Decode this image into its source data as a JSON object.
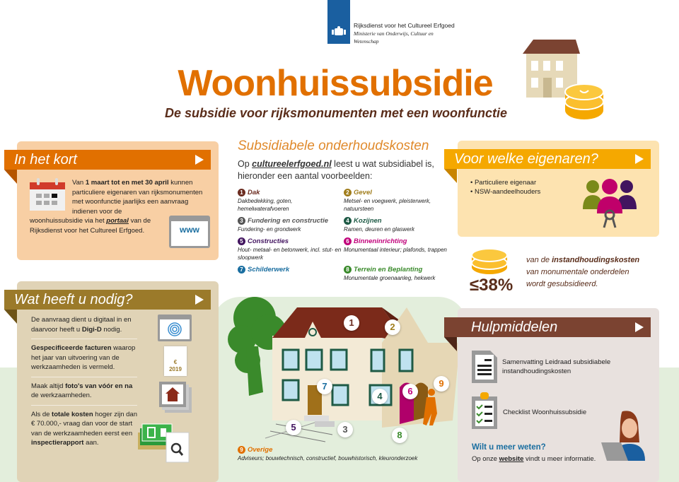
{
  "header": {
    "org_name": "Rijksdienst voor het Cultureel Erfgoed",
    "ministry": "Ministerie van Onderwijs, Cultuur en Wetenschap",
    "title": "Woonhuissubsidie",
    "subtitle": "De subsidie voor rijksmonumenten met een woonfunctie"
  },
  "kort": {
    "heading": "In het kort",
    "text_pre": "Van ",
    "text_bold": "1 maart tot en met 30 april",
    "text_mid": " kunnen particuliere eigenaren van rijksmonumenten met woonfunctie jaarlijks een aanvraag indienen voor de woonhuissubsidie via het ",
    "link": "portaal",
    "text_post": " van de Rijksdienst voor het Cultureel Erfgoed.",
    "www_label": "www"
  },
  "nodig": {
    "heading": "Wat heeft u nodig?",
    "items": [
      {
        "pre": "De aanvraag dient u digitaal in en daarvoor heeft u ",
        "bold": "Digi-D",
        "post": " nodig."
      },
      {
        "pre": "",
        "bold": "Gespecificeerde facturen",
        "post": " waarop het jaar van uitvoering van de werkzaamheden is vermeld."
      },
      {
        "pre": "Maak altijd ",
        "bold": "foto's van vóór en na",
        "post": " de werkzaamheden."
      },
      {
        "pre": "Als de ",
        "bold": "totale kosten",
        "post": " hoger zijn dan € 70.000,- vraag dan voor de start van de werkzaamheden eerst een ",
        "bold2": "inspectierapport",
        "post2": " aan."
      }
    ],
    "invoice_year": "2019",
    "euro_sign": "€"
  },
  "kosten": {
    "heading": "Subsidiabele onderhoudskosten",
    "intro_pre": "Op ",
    "intro_link": "cultureelerfgoed.nl",
    "intro_post": " leest u wat subsidiabel is, hieronder een aantal voorbeelden:",
    "items": [
      {
        "n": "1",
        "title": "Dak",
        "desc": "Dakbedekking, goten, hemelwaterafvoeren",
        "color": "#6b2b1f"
      },
      {
        "n": "2",
        "title": "Gevel",
        "desc": "Metsel- en voegwerk, pleisterwerk, natuursteen",
        "color": "#a07d1c"
      },
      {
        "n": "3",
        "title": "Fundering en constructie",
        "desc": "Fundering- en grondwerk",
        "color": "#555555"
      },
      {
        "n": "4",
        "title": "Kozijnen",
        "desc": "Ramen, deuren en glaswerk",
        "color": "#1e5a45"
      },
      {
        "n": "5",
        "title": "Constructies",
        "desc": "Hout- metaal- en betonwerk, incl. stut- en sloopwerk",
        "color": "#42145f"
      },
      {
        "n": "6",
        "title": "Binneninrichting",
        "desc": "Monumentaal interieur; plafonds, trappen",
        "color": "#c0007a"
      },
      {
        "n": "7",
        "title": "Schilderwerk",
        "desc": "",
        "color": "#1a6ea0"
      },
      {
        "n": "8",
        "title": "Terrein en Beplanting",
        "desc": "Monumentale groenaanleg, hekwerk",
        "color": "#3a8a2b"
      },
      {
        "n": "9",
        "title": "Overige",
        "desc": "Adviseurs; bouwtechnisch, constructief, bouwhistorisch, kleuronderzoek",
        "color": "#e17000"
      }
    ]
  },
  "eigenaren": {
    "heading": "Voor welke eigenaren?",
    "items": [
      "Particuliere eigenaar",
      "NSW-aandeelhouders"
    ]
  },
  "percentage": {
    "value": "≤38%",
    "line1_pre": "van de ",
    "line1_bold": "instandhoudingskosten",
    "line2": "van monumentale onderdelen",
    "line3": "wordt gesubsidieerd."
  },
  "hulp": {
    "heading": "Hulpmiddelen",
    "items": [
      "Samenvatting Leidraad subsidiabele instandhoudingskosten",
      "Checklist Woonhuissubsidie"
    ],
    "more_title": "Wilt u meer weten?",
    "more_pre": "Op onze ",
    "more_link": "website",
    "more_post": " vindt u meer informatie."
  },
  "colors": {
    "orange": "#e17000",
    "brown": "#7b4331",
    "gold": "#9b7a2a",
    "yellow": "#f5a800"
  }
}
